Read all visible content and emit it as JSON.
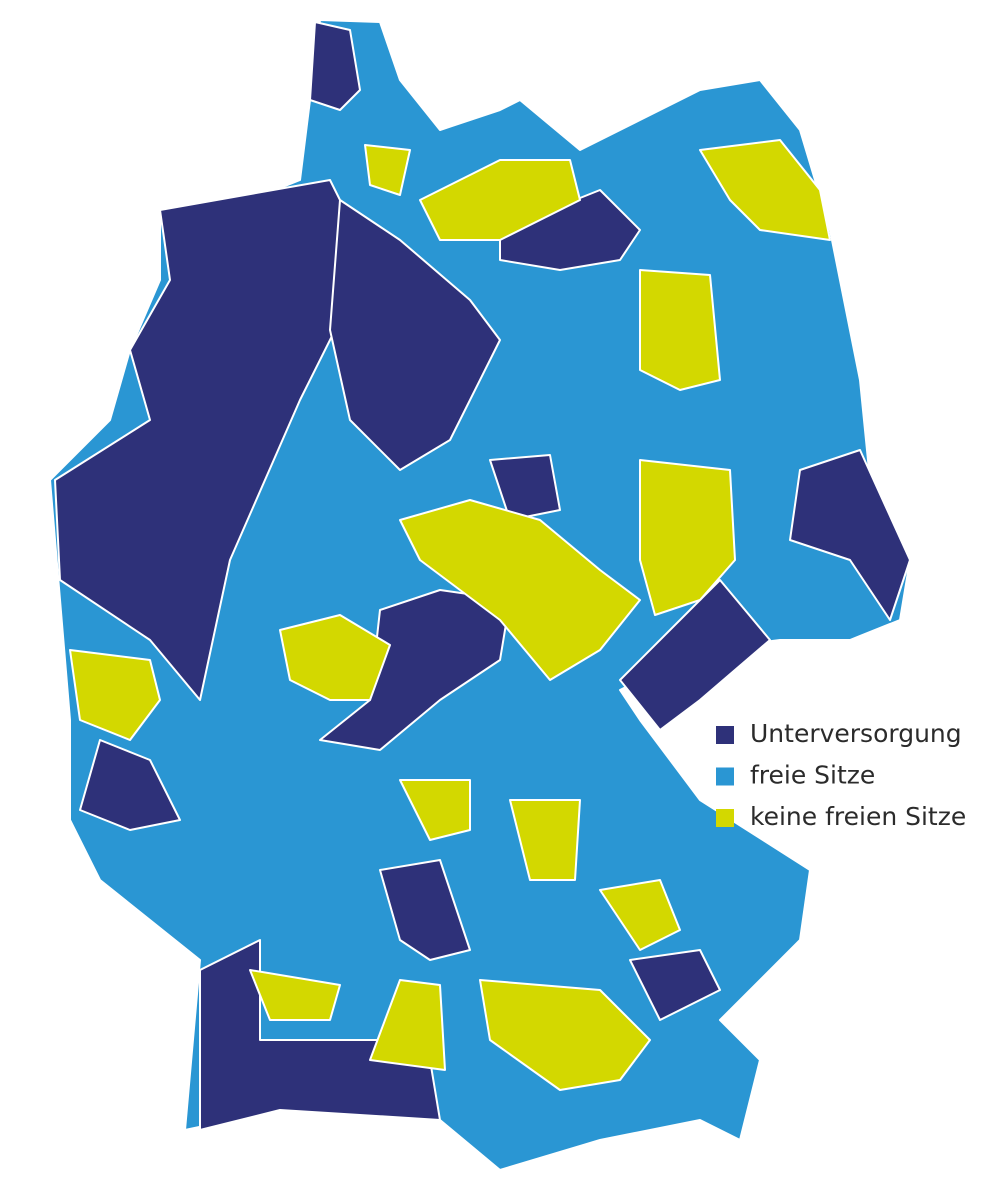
{
  "legend": {
    "items": [
      {
        "label": "Unterversorgung",
        "color": "#2e3179"
      },
      {
        "label": "freie Sitze",
        "color": "#2a96d3"
      },
      {
        "label": "keine freien Sitze",
        "color": "#d3d800"
      }
    ]
  }
}
